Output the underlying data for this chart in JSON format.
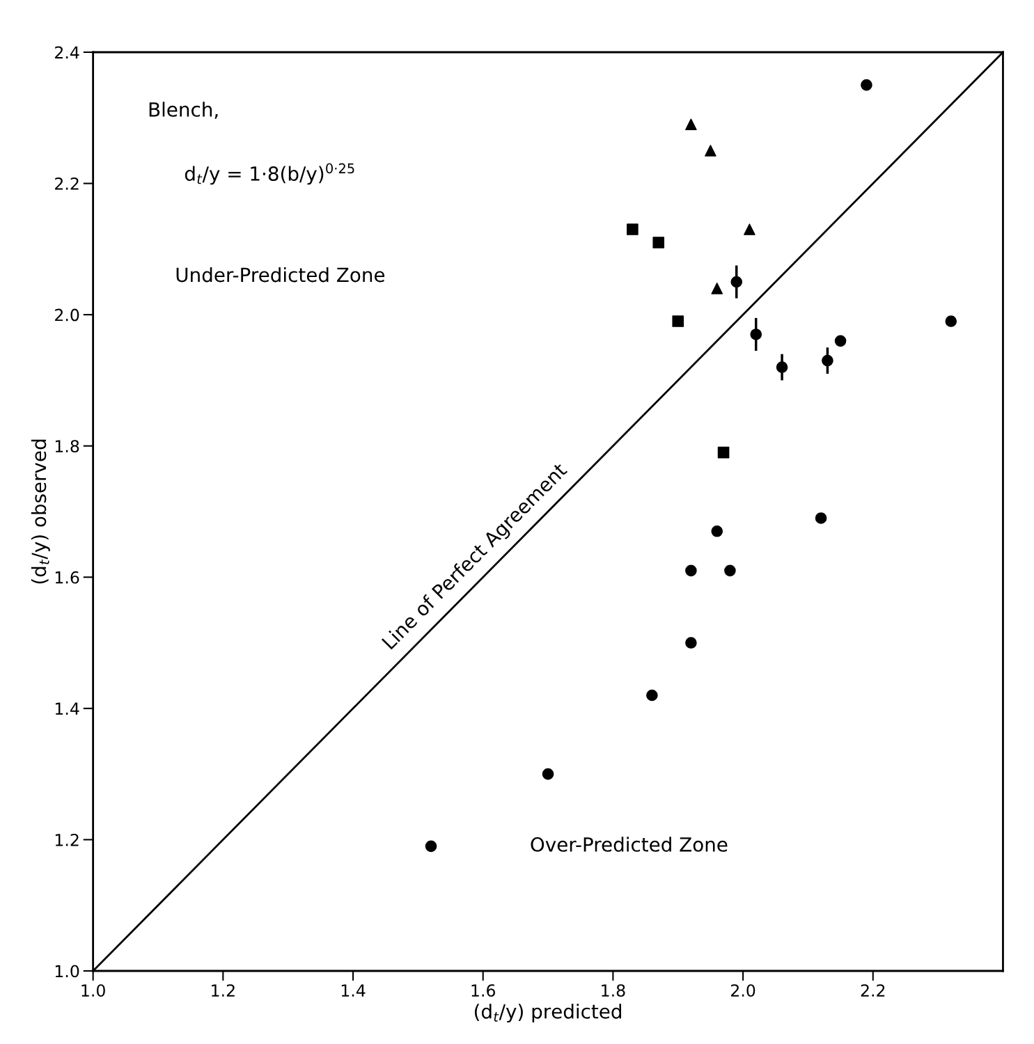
{
  "chart_data": {
    "type": "scatter",
    "title": "Blench,",
    "xlabel": "(d$_{t}$/y) predicted",
    "ylabel": "(d$_{t}$/y) observed",
    "xlim": [
      1.0,
      2.4
    ],
    "ylim": [
      1.0,
      2.4
    ],
    "xticks": [
      {
        "value": 1.0,
        "label": "1.0"
      },
      1.2,
      1.4,
      1.6,
      1.8,
      {
        "value": 2.0,
        "label": "2.0"
      },
      2.2
    ],
    "yticks": [
      {
        "value": 1.0,
        "label": "1.0"
      },
      1.2,
      1.4,
      1.6,
      1.8,
      {
        "value": 2.0,
        "label": "2.0"
      },
      2.2,
      2.4
    ],
    "grid": false,
    "legend": false,
    "series": [
      {
        "marker": "circle",
        "color": "#000000",
        "x": [
          1.52,
          1.7,
          1.86,
          1.92,
          1.92,
          1.98,
          1.96,
          2.12,
          2.32,
          2.19,
          2.15
        ],
        "values": [
          1.19,
          1.3,
          1.42,
          1.5,
          1.61,
          1.61,
          1.67,
          1.69,
          1.99,
          2.35,
          1.96
        ]
      },
      {
        "marker": "circle",
        "color": "#000000",
        "x": [
          1.99,
          2.02,
          2.06,
          2.13
        ],
        "values": [
          2.05,
          1.97,
          1.92,
          1.93
        ],
        "errors": [
          0.025,
          0.025,
          0.02,
          0.02
        ]
      },
      {
        "marker": "square",
        "color": "#000000",
        "x": [
          1.83,
          1.87,
          1.9,
          1.97
        ],
        "values": [
          2.13,
          2.11,
          1.99,
          1.79
        ]
      },
      {
        "marker": "triangle",
        "color": "#000000",
        "x": [
          1.92,
          1.95,
          2.01,
          1.96
        ],
        "values": [
          2.29,
          2.25,
          2.13,
          2.04
        ]
      },
      {
        "type": "line",
        "marker": "none",
        "line_style": "solid",
        "color": "#000000",
        "x": [
          1.0,
          2.4
        ],
        "values": [
          1.0,
          2.4
        ]
      }
    ],
    "annotations": [
      "d$_{t}$/y = 1·8(b/y)$^{0·25}$",
      "Under-Predicted Zone",
      "Over-Predicted Zone",
      "Line of Perfect Agreement"
    ]
  }
}
